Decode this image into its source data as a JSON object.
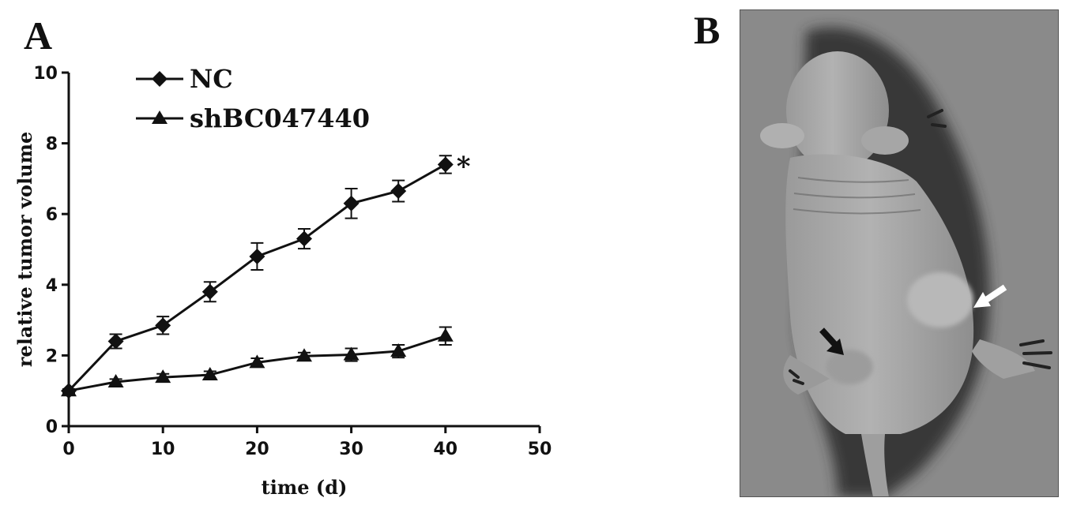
{
  "panels": {
    "a_label": "A",
    "b_label": "B"
  },
  "chart_data": {
    "type": "line",
    "title": "",
    "xlabel": "time (d)",
    "ylabel": "relative tumor volume",
    "xlim": [
      0,
      50
    ],
    "ylim": [
      0,
      10
    ],
    "xticks": [
      0,
      10,
      20,
      30,
      40,
      50
    ],
    "yticks": [
      0,
      2,
      4,
      6,
      8,
      10
    ],
    "grid": false,
    "legend_position": "top-left",
    "series": [
      {
        "name": "NC",
        "marker": "diamond",
        "x": [
          0,
          5,
          10,
          15,
          20,
          25,
          30,
          35,
          40
        ],
        "y": [
          1.0,
          2.4,
          2.85,
          3.8,
          4.8,
          5.3,
          6.3,
          6.65,
          7.4
        ],
        "error": [
          0.05,
          0.2,
          0.25,
          0.28,
          0.38,
          0.28,
          0.42,
          0.3,
          0.25
        ]
      },
      {
        "name": "shBC047440",
        "marker": "triangle",
        "x": [
          0,
          5,
          10,
          15,
          20,
          25,
          30,
          35,
          40
        ],
        "y": [
          1.0,
          1.25,
          1.38,
          1.45,
          1.8,
          1.98,
          2.02,
          2.12,
          2.55
        ],
        "error": [
          0.05,
          0.08,
          0.1,
          0.1,
          0.12,
          0.1,
          0.18,
          0.18,
          0.25
        ]
      }
    ],
    "annotations": [
      {
        "text": "*",
        "series": "NC",
        "x": 40
      }
    ]
  },
  "photo": {
    "colors": {
      "background": "#8a8a8a",
      "body": "#a9a9a9",
      "shadow": "#2a2a2a",
      "arrow_dark": "#111111",
      "arrow_light": "#ffffff"
    },
    "arrows": [
      "black-arrow",
      "white-arrow"
    ]
  }
}
